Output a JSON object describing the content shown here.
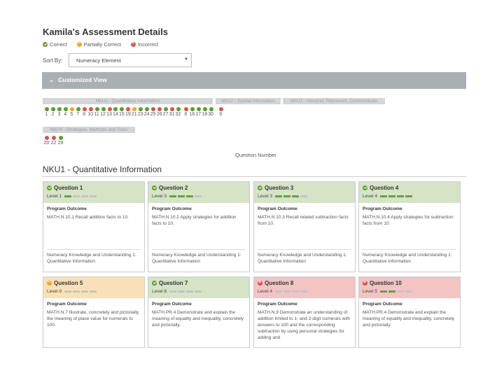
{
  "page_title": "Kamila's Assessment Details",
  "legend": {
    "correct": "Correct",
    "partial": "Partially Correct",
    "incorrect": "Incorrect"
  },
  "sort": {
    "label": "Sort By:",
    "value": "Numeracy Element"
  },
  "customized_view": "Customized View",
  "groups": [
    {
      "label": "NKU1 - Quantitative Information"
    },
    {
      "label": "NKU2 - Spatial Information"
    },
    {
      "label": "NKU3 - Interpret, Represent, Communicate"
    },
    {
      "label": "NKU4 - Strategies, Methods and Tools"
    }
  ],
  "question_row1": [
    {
      "num": "1",
      "status": "correct"
    },
    {
      "num": "2",
      "status": "correct"
    },
    {
      "num": "3",
      "status": "correct"
    },
    {
      "num": "4",
      "status": "correct"
    },
    {
      "num": "5",
      "status": "partial"
    },
    {
      "num": "7",
      "status": "correct"
    },
    {
      "num": "8",
      "status": "incorrect"
    },
    {
      "num": "10",
      "status": "incorrect"
    },
    {
      "num": "11",
      "status": "correct"
    },
    {
      "num": "12",
      "status": "correct"
    },
    {
      "num": "13",
      "status": "incorrect"
    },
    {
      "num": "14",
      "status": "correct"
    },
    {
      "num": "15",
      "status": "correct"
    },
    {
      "num": "19",
      "status": "incorrect"
    },
    {
      "num": "21",
      "status": "partial"
    },
    {
      "num": "23",
      "status": "correct"
    },
    {
      "num": "24",
      "status": "correct"
    },
    {
      "num": "25",
      "status": "incorrect"
    },
    {
      "num": "26",
      "status": "incorrect"
    },
    {
      "num": "27",
      "status": "correct"
    },
    {
      "num": "31",
      "status": "incorrect"
    },
    {
      "num": "32",
      "status": "correct"
    },
    {
      "num": "6",
      "status": "incorrect"
    },
    {
      "num": "16",
      "status": "correct"
    },
    {
      "num": "17",
      "status": "correct"
    },
    {
      "num": "18",
      "status": "correct"
    },
    {
      "num": "30",
      "status": "correct"
    },
    {
      "num": "9",
      "status": "incorrect"
    }
  ],
  "question_row2": [
    {
      "num": "20",
      "status": "incorrect"
    },
    {
      "num": "22",
      "status": "incorrect"
    },
    {
      "num": "29",
      "status": "correct"
    }
  ],
  "question_number_label": "Question Number",
  "section_title": "NKU1 - Quantitative Information",
  "program_outcome_label": "Program Outcome",
  "cards": [
    {
      "title": "Question 1",
      "status": "correct",
      "level": "Level 1",
      "level_fill": 1,
      "outcome": "MATH.N.10.1 Recall addition facts to 10.",
      "element": "Numeracy Knowledge and Understanding 1: Quantitative Information"
    },
    {
      "title": "Question 2",
      "status": "correct",
      "level": "Level 3",
      "level_fill": 3,
      "outcome": "MATH.N.10.2 Apply strategies for addition facts to 10.",
      "element": "Numeracy Knowledge and Understanding 1: Quantitative Information"
    },
    {
      "title": "Question 3",
      "status": "correct",
      "level": "Level 3",
      "level_fill": 3,
      "outcome": "MATH.N.10.3 Recall related subtraction facts from 10.",
      "element": "Numeracy Knowledge and Understanding 1: Quantitative Information"
    },
    {
      "title": "Question 4",
      "status": "correct",
      "level": "Level 4",
      "level_fill": 4,
      "outcome": "MATH.N.10.4 Apply strategies for subtraction facts from 10.",
      "element": "Numeracy Knowledge and Understanding 1: Quantitative Information"
    },
    {
      "title": "Question 5",
      "status": "partial",
      "level": "Level 9",
      "level_fill": 0,
      "outcome": "MATH.N.7 Illustrate, concretely and pictorially, the meaning of place value for numerals to 100.",
      "element": ""
    },
    {
      "title": "Question 7",
      "status": "correct",
      "level": "Level 8",
      "level_fill": 0,
      "outcome": "MATH.PR.4 Demonstrate and explain the meaning of equality and inequality, concretely and pictorially.",
      "element": ""
    },
    {
      "title": "Question 8",
      "status": "incorrect",
      "level": "Level 4",
      "level_fill": 0,
      "outcome": "MATH.N.9 Demonstrate an understanding of addition limited to 1- and 2-digit numerals with answers to 100 and the corresponding subtraction by using personal strategies for adding and",
      "element": ""
    },
    {
      "title": "Question 10",
      "status": "incorrect",
      "level": "Level 5",
      "level_fill": 2,
      "outcome": "MATH.PR.4 Demonstrate and explain the meaning of equality and inequality, concretely and pictorially.",
      "element": ""
    }
  ]
}
